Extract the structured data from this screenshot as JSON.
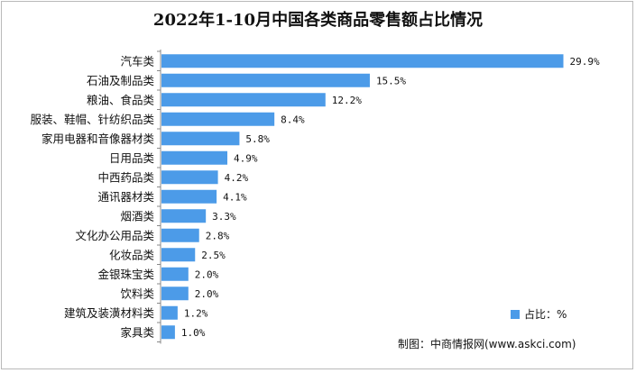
{
  "chart_data": {
    "type": "bar",
    "orientation": "horizontal",
    "title": "2022年1-10月中国各类商品零售额占比情况",
    "categories": [
      "汽车类",
      "石油及制品类",
      "粮油、食品类",
      "服装、鞋帽、针纺织品类",
      "家用电器和音像器材类",
      "日用品类",
      "中西药品类",
      "通讯器材类",
      "烟酒类",
      "文化办公用品类",
      "化妆品类",
      "金银珠宝类",
      "饮料类",
      "建筑及装潢材料类",
      "家具类"
    ],
    "series": [
      {
        "name": "占比：%",
        "values": [
          29.9,
          15.5,
          12.2,
          8.4,
          5.8,
          4.9,
          4.2,
          4.1,
          3.3,
          2.8,
          2.5,
          2.0,
          2.0,
          1.2,
          1.0
        ],
        "value_labels": [
          "29.9%",
          "15.5%",
          "12.2%",
          "8.4%",
          "5.8%",
          "4.9%",
          "4.2%",
          "4.1%",
          "3.3%",
          "2.8%",
          "2.5%",
          "2.0%",
          "2.0%",
          "1.2%",
          "1.0%"
        ]
      }
    ],
    "xlim": [
      0,
      30
    ],
    "grid": false,
    "legend_position": "bottom-right",
    "bar_color": "#4c9be8",
    "axis_color": "#888888"
  },
  "source": "制图：中商情报网(www.askci.com)"
}
